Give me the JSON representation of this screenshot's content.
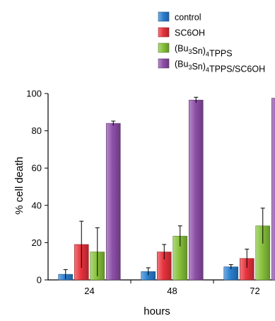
{
  "chart_data": {
    "type": "bar",
    "categories": [
      "24",
      "48",
      "72"
    ],
    "series": [
      {
        "name": "control",
        "values": [
          3,
          4.5,
          7
        ],
        "errors": [
          2.5,
          2,
          1.2
        ],
        "color": "#2a7fd0"
      },
      {
        "name": "SC6OH",
        "values": [
          19,
          15,
          11.5
        ],
        "errors": [
          12.5,
          4,
          5
        ],
        "color": "#e8323c"
      },
      {
        "name": "(Bu3Sn)4TPPS",
        "values": [
          15,
          23.5,
          29
        ],
        "errors": [
          13,
          5.5,
          9.5
        ],
        "color": "#86c13a"
      },
      {
        "name": "(Bu3Sn)4TPPS/SC6OH",
        "values": [
          84,
          96.5,
          97.5
        ],
        "errors": [
          1.2,
          1.5,
          0.8
        ],
        "color": "#8e4fa8"
      }
    ],
    "xlabel": "hours",
    "ylabel": "% cell death",
    "ylim": [
      0,
      100
    ],
    "yticks": [
      0,
      20,
      40,
      60,
      80,
      100
    ],
    "grid": false,
    "legend_position": "top-right"
  }
}
